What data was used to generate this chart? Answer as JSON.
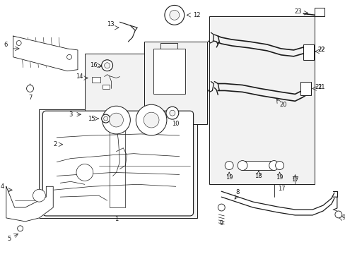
{
  "bg_color": "#ffffff",
  "fig_width": 4.89,
  "fig_height": 3.6,
  "dpi": 100,
  "dark": "#1a1a1a",
  "gray": "#888888",
  "light_fill": "#f2f2f2",
  "box_fill": "#ebebeb"
}
